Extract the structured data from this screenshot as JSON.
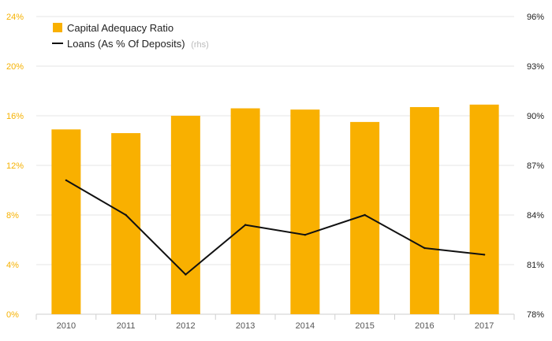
{
  "chart_data": {
    "type": "bar+line",
    "categories": [
      "2010",
      "2011",
      "2012",
      "2013",
      "2014",
      "2015",
      "2016",
      "2017"
    ],
    "series": [
      {
        "name": "Capital Adequacy Ratio",
        "type": "bar",
        "axis": "left",
        "color": "#f9b000",
        "values": [
          14.9,
          14.6,
          16.0,
          16.6,
          16.5,
          15.5,
          16.7,
          16.9
        ]
      },
      {
        "name": "Loans (As % Of Deposits)",
        "note": "(rhs)",
        "type": "line",
        "axis": "right",
        "color": "#111111",
        "values": [
          86.1,
          84.0,
          80.4,
          83.4,
          82.8,
          84.0,
          82.0,
          81.6
        ]
      }
    ],
    "y_left": {
      "ylim": [
        0,
        24
      ],
      "ticks": [
        "0%",
        "4%",
        "8%",
        "12%",
        "16%",
        "20%",
        "24%"
      ]
    },
    "y_right": {
      "ylim": [
        78,
        96
      ],
      "ticks": [
        "78%",
        "81%",
        "84%",
        "87%",
        "90%",
        "93%",
        "96%"
      ]
    },
    "grid": "horizontal",
    "legend": "top-left"
  }
}
